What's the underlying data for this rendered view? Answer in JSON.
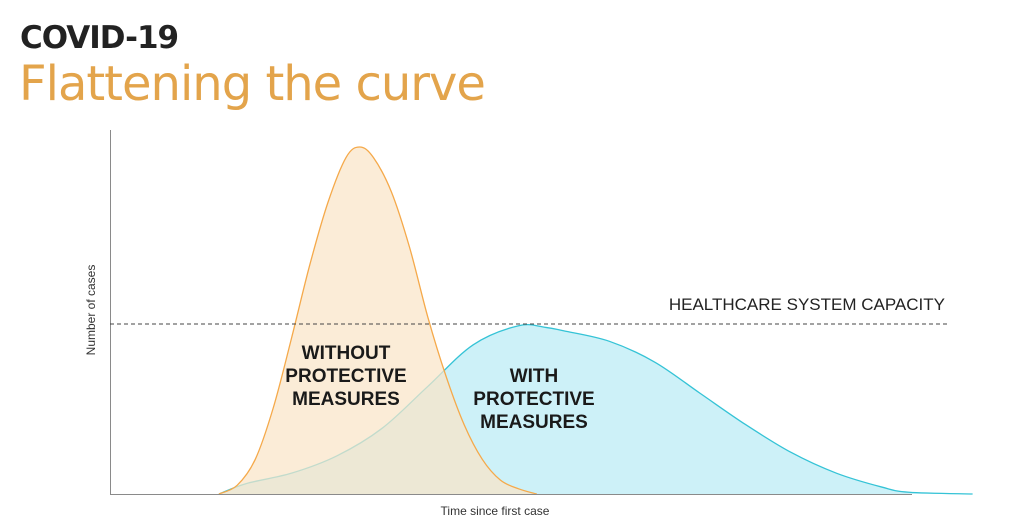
{
  "header": {
    "label": "COVID-19",
    "title": "Flattening the curve"
  },
  "chart_data": {
    "type": "area",
    "xlabel": "Time since first case",
    "ylabel": "Number of cases",
    "xlim": [
      0,
      100
    ],
    "ylim": [
      0,
      100
    ],
    "grid": false,
    "reference_line": {
      "label": "HEALTHCARE SYSTEM CAPACITY",
      "y": 49
    },
    "series": [
      {
        "name": "WITHOUT PROTECTIVE MEASURES",
        "color": "#f5a94a",
        "fill": "#fae5c7",
        "label_lines": [
          "WITHOUT",
          "PROTECTIVE",
          "MEASURES"
        ],
        "x": [
          12,
          14,
          16,
          18,
          20,
          22,
          24,
          26,
          27.5,
          29,
          31,
          33,
          35,
          37,
          39,
          41,
          43,
          45,
          47
        ],
        "y": [
          0,
          2.5,
          10,
          25,
          45,
          66,
          84,
          97,
          100,
          97,
          87,
          71,
          51,
          34,
          20,
          10,
          4,
          1.5,
          0
        ]
      },
      {
        "name": "WITH PROTECTIVE MEASURES",
        "color": "#35c3d6",
        "fill": "#cdf1f8",
        "label_lines": [
          "WITH",
          "PROTECTIVE",
          "MEASURES"
        ],
        "x": [
          12,
          15,
          20,
          25,
          30,
          35,
          40,
          45,
          48,
          50,
          55,
          60,
          65,
          70,
          75,
          80,
          85,
          88,
          95
        ],
        "y": [
          0,
          3,
          6,
          11,
          19,
          31,
          43,
          48.5,
          48,
          47,
          44,
          38,
          29,
          20,
          12,
          6,
          2,
          0.5,
          0
        ]
      }
    ]
  }
}
